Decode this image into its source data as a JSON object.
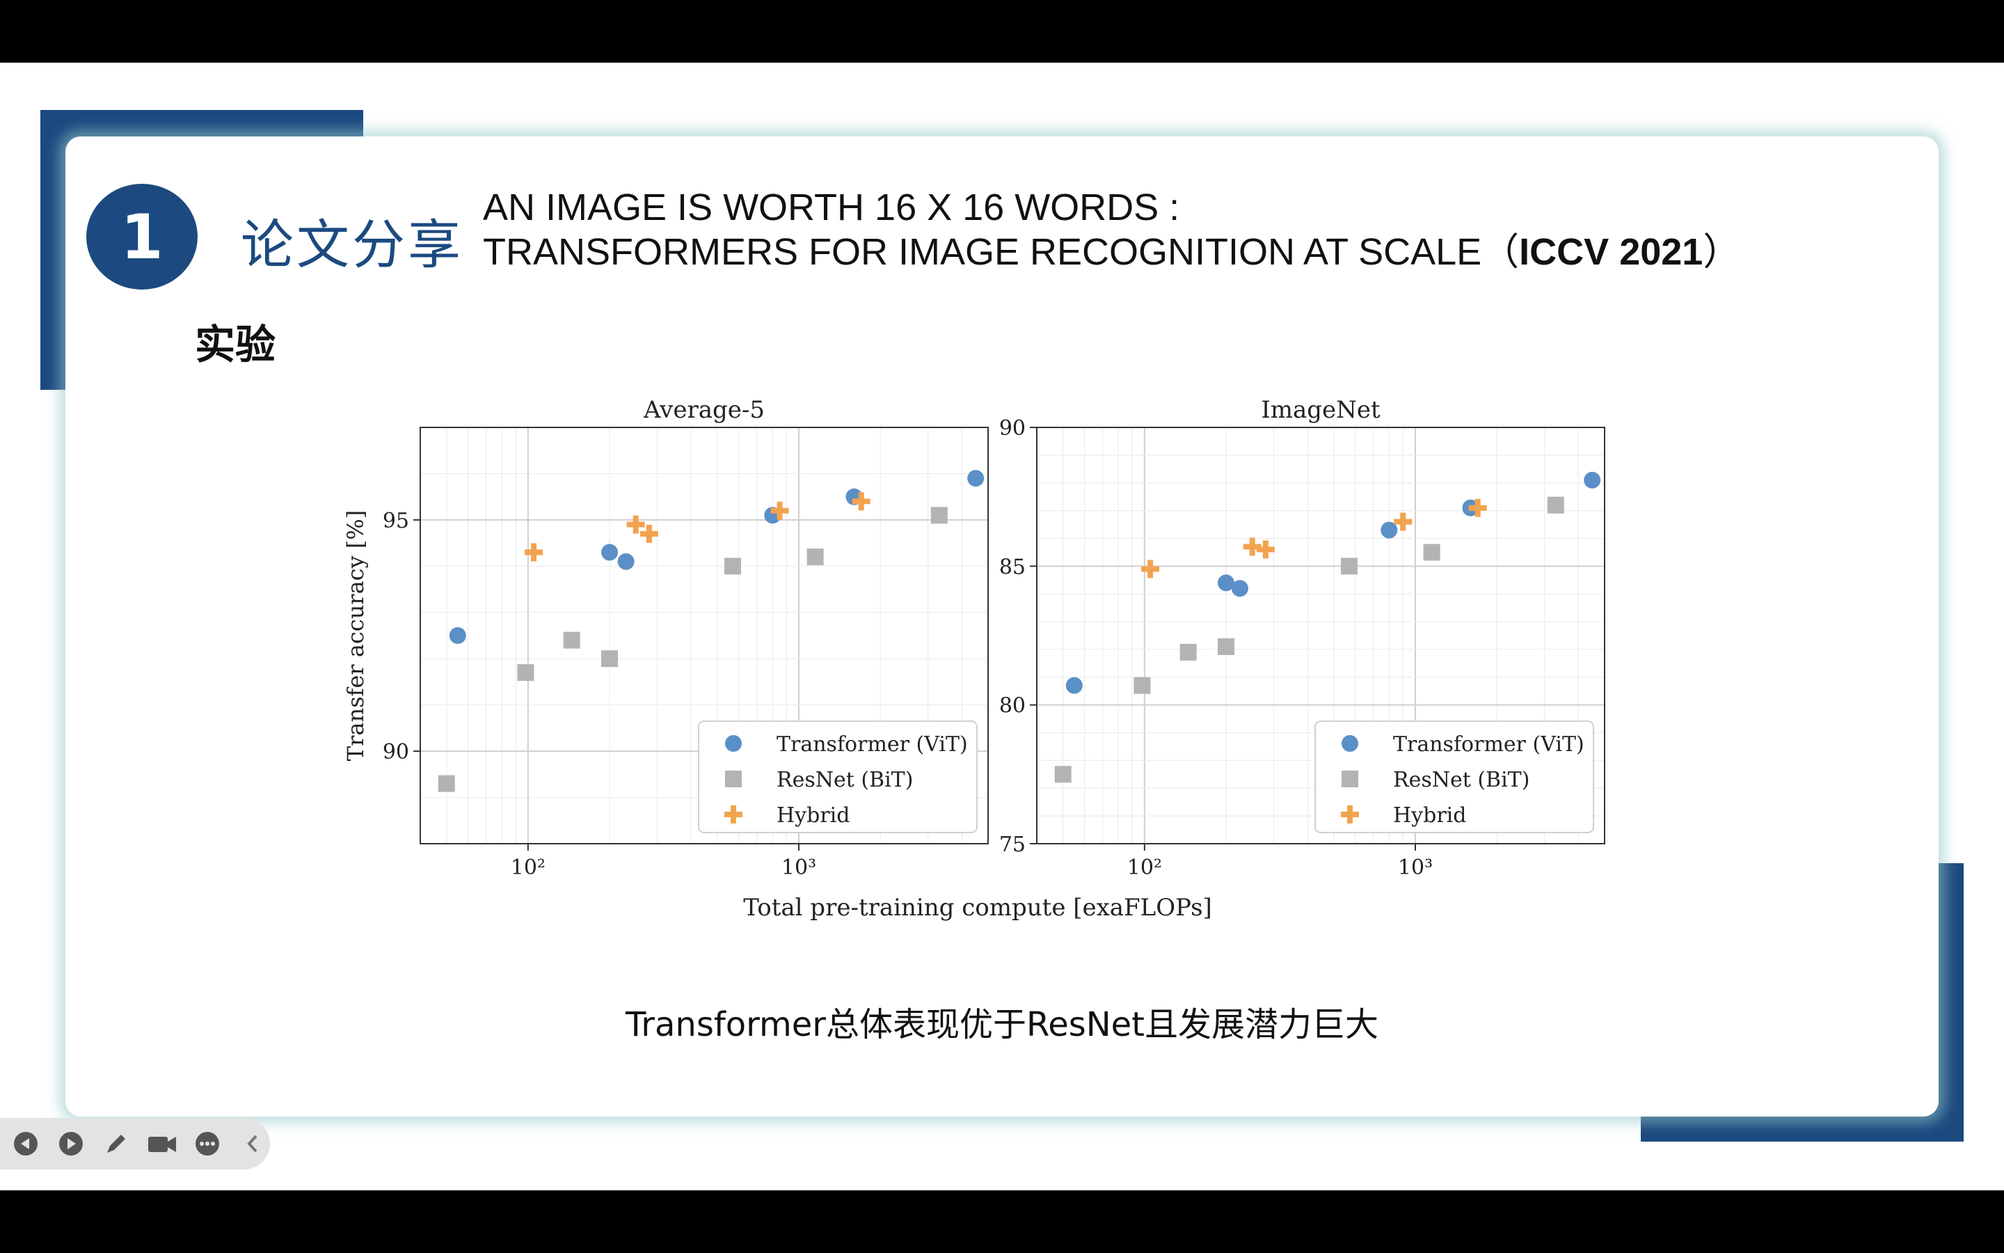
{
  "slide": {
    "number": "1",
    "section_title": "论文分享",
    "paper_title_line1": "AN IMAGE IS WORTH 16 X 16 WORDS :",
    "paper_title_line2": "TRANSFORMERS FOR IMAGE RECOGNITION AT SCALE",
    "paper_venue_open": "（",
    "paper_venue": "ICCV 2021",
    "paper_venue_close": "）",
    "subtitle": "实验",
    "caption": "Transformer总体表现优于ResNet且发展潜力巨大"
  },
  "colors": {
    "brand_blue": "#1c4a80",
    "transformer": "#5b8fc7",
    "resnet": "#b3b3b3",
    "hybrid": "#f2a34f"
  },
  "toolbar": {
    "icons": [
      "prev-icon",
      "next-icon",
      "pen-icon",
      "camera-icon",
      "more-icon",
      "collapse-icon"
    ]
  },
  "chart_data": [
    {
      "type": "scatter",
      "title": "Average-5",
      "xlabel": "Total pre-training compute [exaFLOPs]",
      "ylabel": "Transfer accuracy [%]",
      "xscale": "log",
      "xlim": [
        40,
        5000
      ],
      "ylim": [
        88,
        97
      ],
      "yticks": [
        "90",
        "95"
      ],
      "xticks": [
        "10²",
        "10³"
      ],
      "grid": true,
      "legend": "bottom-right",
      "series": [
        {
          "name": "Transformer (ViT)",
          "marker": "circle",
          "x": [
            55,
            200,
            230,
            800,
            1600,
            4500
          ],
          "y": [
            92.5,
            94.3,
            94.1,
            95.1,
            95.5,
            95.9
          ]
        },
        {
          "name": "ResNet (BiT)",
          "marker": "square",
          "x": [
            50,
            98,
            145,
            200,
            570,
            1150,
            3300
          ],
          "y": [
            89.3,
            91.7,
            92.4,
            92.0,
            94.0,
            94.2,
            95.1
          ]
        },
        {
          "name": "Hybrid",
          "marker": "plus",
          "x": [
            105,
            250,
            280,
            850,
            1700
          ],
          "y": [
            94.3,
            94.9,
            94.7,
            95.2,
            95.4
          ]
        }
      ]
    },
    {
      "type": "scatter",
      "title": "ImageNet",
      "xlabel": "Total pre-training compute [exaFLOPs]",
      "ylabel": "",
      "xscale": "log",
      "xlim": [
        40,
        5000
      ],
      "ylim": [
        75,
        90
      ],
      "yticks": [
        "75",
        "80",
        "85",
        "90"
      ],
      "xticks": [
        "10²",
        "10³"
      ],
      "grid": true,
      "legend": "bottom-right",
      "series": [
        {
          "name": "Transformer (ViT)",
          "marker": "circle",
          "x": [
            55,
            200,
            225,
            800,
            1600,
            4500
          ],
          "y": [
            80.7,
            84.4,
            84.2,
            86.3,
            87.1,
            88.1
          ]
        },
        {
          "name": "ResNet (BiT)",
          "marker": "square",
          "x": [
            50,
            98,
            145,
            200,
            570,
            1150,
            3300
          ],
          "y": [
            77.5,
            80.7,
            81.9,
            82.1,
            85.0,
            85.5,
            87.2
          ]
        },
        {
          "name": "Hybrid",
          "marker": "plus",
          "x": [
            105,
            250,
            280,
            900,
            1700
          ],
          "y": [
            84.9,
            85.7,
            85.6,
            86.6,
            87.1
          ]
        }
      ]
    }
  ]
}
